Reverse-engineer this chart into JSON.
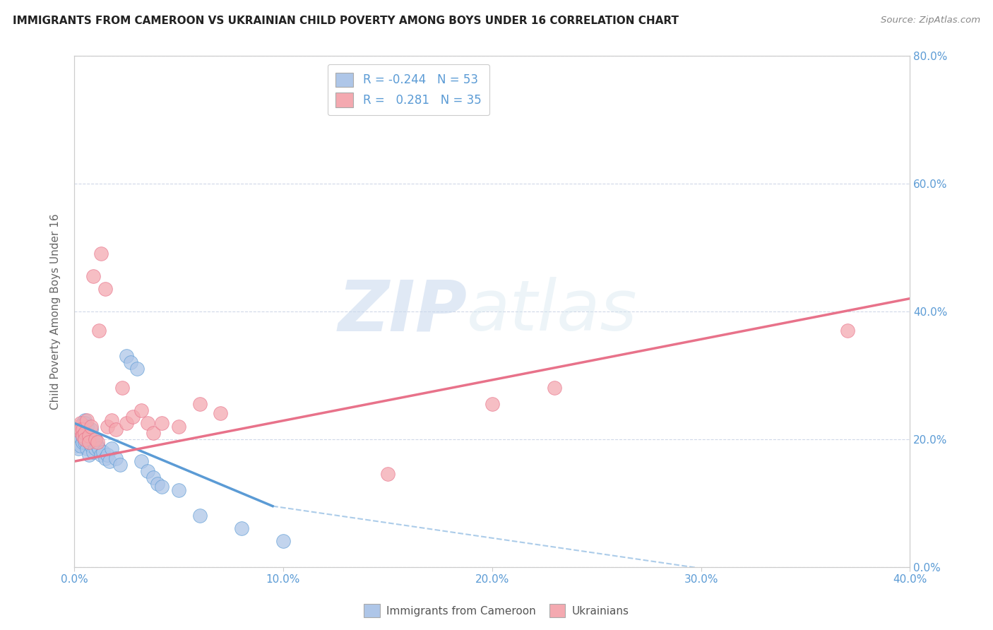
{
  "title": "IMMIGRANTS FROM CAMEROON VS UKRAINIAN CHILD POVERTY AMONG BOYS UNDER 16 CORRELATION CHART",
  "source": "Source: ZipAtlas.com",
  "ylabel": "Child Poverty Among Boys Under 16",
  "xlim": [
    0.0,
    0.4
  ],
  "ylim": [
    0.0,
    0.8
  ],
  "legend_entries": [
    {
      "label": "Immigrants from Cameroon",
      "color": "#aec6e8",
      "R": "-0.244",
      "N": "53"
    },
    {
      "label": "Ukrainians",
      "color": "#f4a9b0",
      "R": "0.281",
      "N": "35"
    }
  ],
  "blue_scatter_x": [
    0.001,
    0.001,
    0.002,
    0.002,
    0.002,
    0.003,
    0.003,
    0.003,
    0.003,
    0.004,
    0.004,
    0.004,
    0.004,
    0.005,
    0.005,
    0.005,
    0.005,
    0.006,
    0.006,
    0.006,
    0.006,
    0.007,
    0.007,
    0.007,
    0.008,
    0.008,
    0.008,
    0.009,
    0.009,
    0.01,
    0.01,
    0.011,
    0.012,
    0.013,
    0.014,
    0.015,
    0.016,
    0.017,
    0.018,
    0.02,
    0.022,
    0.025,
    0.027,
    0.03,
    0.032,
    0.035,
    0.038,
    0.04,
    0.042,
    0.05,
    0.06,
    0.08,
    0.1
  ],
  "blue_scatter_y": [
    0.205,
    0.19,
    0.21,
    0.195,
    0.185,
    0.22,
    0.215,
    0.2,
    0.19,
    0.225,
    0.215,
    0.205,
    0.195,
    0.23,
    0.225,
    0.21,
    0.195,
    0.22,
    0.21,
    0.195,
    0.185,
    0.205,
    0.195,
    0.175,
    0.215,
    0.2,
    0.19,
    0.195,
    0.18,
    0.2,
    0.185,
    0.19,
    0.185,
    0.175,
    0.18,
    0.17,
    0.175,
    0.165,
    0.185,
    0.17,
    0.16,
    0.33,
    0.32,
    0.31,
    0.165,
    0.15,
    0.14,
    0.13,
    0.125,
    0.12,
    0.08,
    0.06,
    0.04
  ],
  "pink_scatter_x": [
    0.001,
    0.002,
    0.003,
    0.003,
    0.004,
    0.004,
    0.005,
    0.005,
    0.006,
    0.007,
    0.007,
    0.008,
    0.009,
    0.01,
    0.011,
    0.012,
    0.013,
    0.015,
    0.016,
    0.018,
    0.02,
    0.023,
    0.025,
    0.028,
    0.032,
    0.035,
    0.038,
    0.042,
    0.05,
    0.06,
    0.07,
    0.15,
    0.2,
    0.23,
    0.37
  ],
  "pink_scatter_y": [
    0.215,
    0.22,
    0.225,
    0.215,
    0.215,
    0.205,
    0.21,
    0.2,
    0.23,
    0.205,
    0.195,
    0.22,
    0.455,
    0.2,
    0.195,
    0.37,
    0.49,
    0.435,
    0.22,
    0.23,
    0.215,
    0.28,
    0.225,
    0.235,
    0.245,
    0.225,
    0.21,
    0.225,
    0.22,
    0.255,
    0.24,
    0.145,
    0.255,
    0.28,
    0.37
  ],
  "blue_line_x": [
    0.0,
    0.095
  ],
  "blue_line_y": [
    0.225,
    0.095
  ],
  "dashed_line_x": [
    0.095,
    0.4
  ],
  "dashed_line_y": [
    0.095,
    -0.05
  ],
  "pink_line_x": [
    0.0,
    0.4
  ],
  "pink_line_y": [
    0.165,
    0.42
  ],
  "watermark_zip": "ZIP",
  "watermark_atlas": "atlas",
  "background_color": "#ffffff",
  "grid_color": "#d0d8e8",
  "scatter_blue_color": "#aec6e8",
  "scatter_pink_color": "#f4a9b0",
  "trend_blue_color": "#5b9bd5",
  "trend_pink_color": "#e8728a",
  "legend_R_color": "#5b9bd5",
  "axis_tick_color": "#5b9bd5"
}
